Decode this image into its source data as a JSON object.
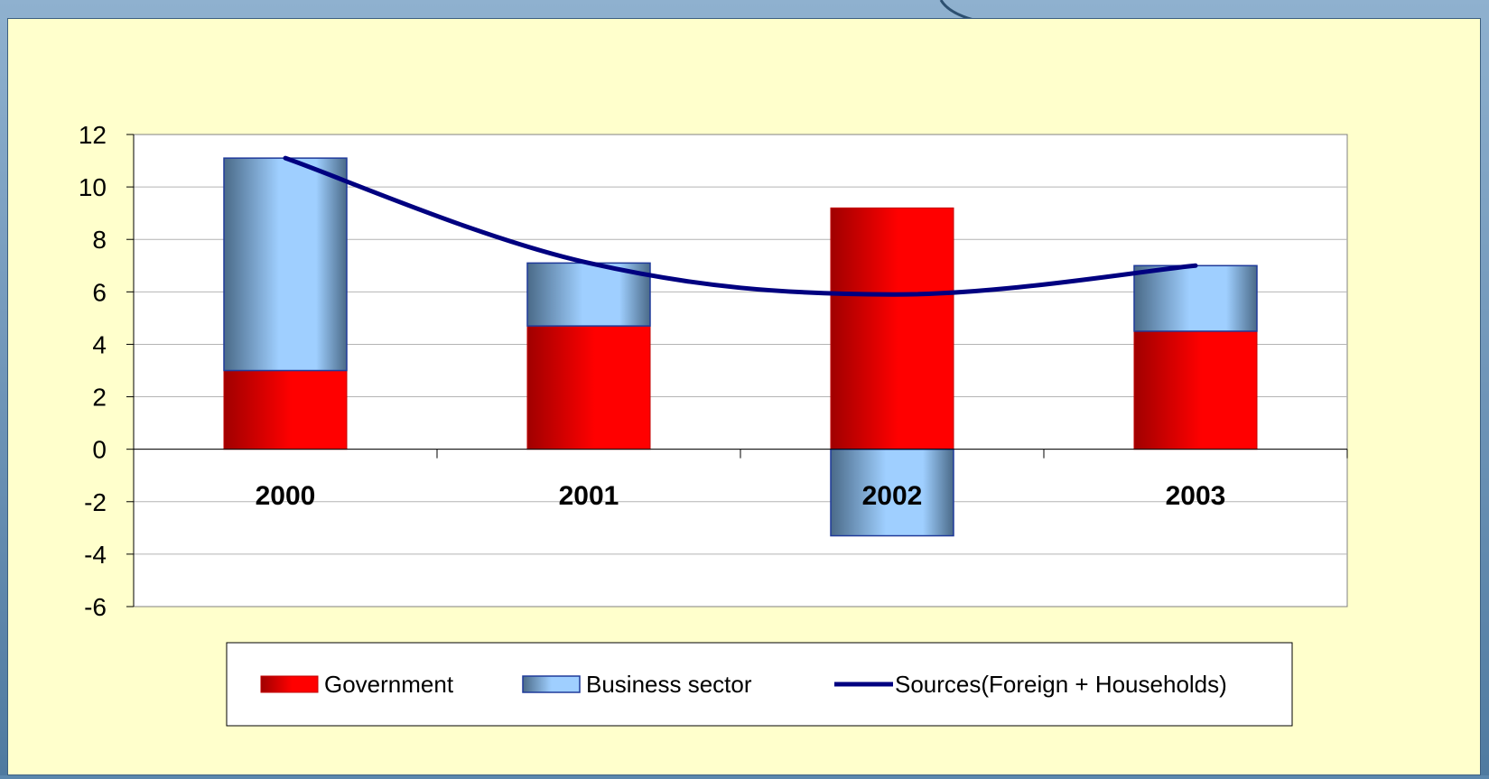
{
  "chart_data": {
    "type": "bar",
    "categories": [
      "2000",
      "2001",
      "2002",
      "2003"
    ],
    "series": [
      {
        "name": "Government",
        "kind": "stacked-bar",
        "values": [
          3.0,
          4.7,
          9.2,
          4.5
        ],
        "color": "#ff0000"
      },
      {
        "name": "Business sector",
        "kind": "stacked-bar",
        "values": [
          8.1,
          2.4,
          -3.3,
          2.5
        ],
        "color": "#99ccff"
      },
      {
        "name": "Sources(Foreign + Households)",
        "kind": "line",
        "values": [
          11.1,
          7.1,
          5.9,
          7.0
        ],
        "color": "#000080"
      }
    ],
    "ylim": [
      -6,
      12
    ],
    "yticks": [
      "12",
      "10",
      "8",
      "6",
      "4",
      "2",
      "0",
      "-2",
      "-4",
      "-6"
    ],
    "grid": true,
    "legend_position": "bottom",
    "colors": {
      "background": "#ffffcc",
      "plot_background": "#ffffff",
      "government": "#ff0000",
      "business": "#99ccff",
      "line": "#000080"
    }
  }
}
